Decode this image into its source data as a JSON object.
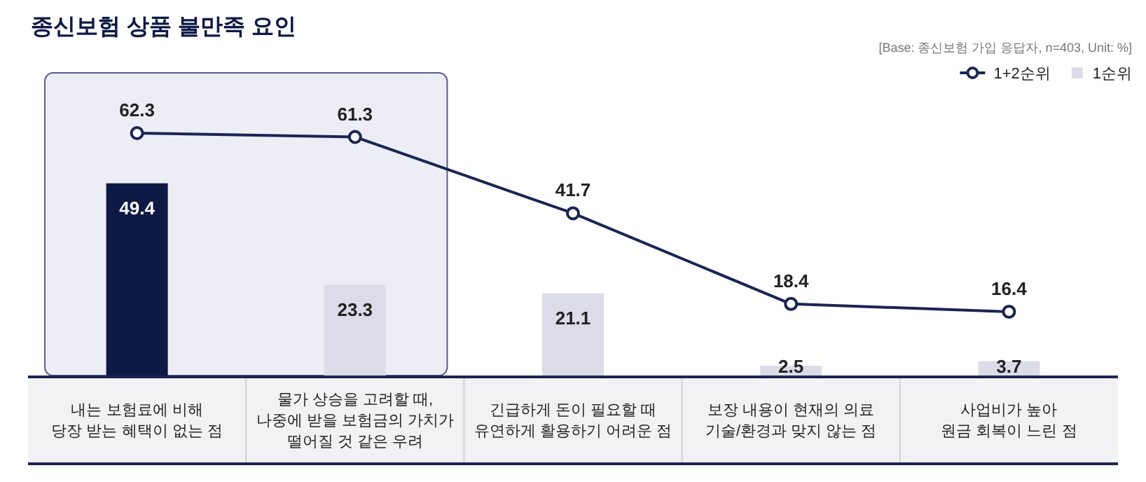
{
  "chart_data": {
    "type": "bar",
    "title": "종신보험 상품 불만족 요인",
    "annotations": [
      "[Base: 종신보험 가입 응답자, n=403, Unit: %]"
    ],
    "categories": [
      "내는 보험료에 비해\n당장 받는 혜택이 없는 점",
      "물가 상승을 고려할 때,\n나중에 받을 보험금의 가치가\n떨어질 것 같은 우려",
      "긴급하게 돈이 필요할 때\n유연하게 활용하기 어려운 점",
      "보장 내용이 현재의 의료\n기술/환경과 맞지 않는 점",
      "사업비가 높아\n원금 회복이 느린 점"
    ],
    "series": [
      {
        "name": "1+2순위",
        "type": "line",
        "color": "#1b2553",
        "values": [
          62.3,
          61.3,
          41.7,
          18.4,
          16.4
        ]
      },
      {
        "name": "1순위",
        "color": "#dcdce8",
        "colors": [
          "#0e1a45",
          "#dcdce8",
          "#dcdce8",
          "#dcdce8",
          "#dcdce8"
        ],
        "values": [
          49.4,
          23.3,
          21.1,
          2.5,
          3.7
        ]
      }
    ],
    "bands": [
      {
        "axis": "x",
        "from": "내는 보험료에 비해\n당장 받는 혜택이 없는 점",
        "to": "물가 상승을 고려할 때,\n나중에 받을 보험금의 가치가\n떨어질 것 같은 우려",
        "color": "#ededf5"
      }
    ],
    "data_labels": true,
    "marker": "circle",
    "legend": "top right"
  }
}
